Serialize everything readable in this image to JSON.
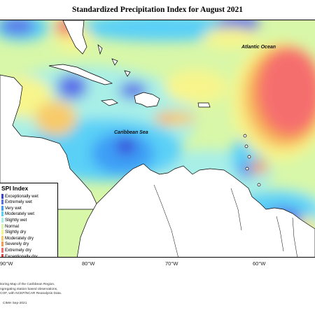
{
  "title": "Standardized Precipitation Index for August 2021",
  "labels": {
    "atlantic": "Atlantic Ocean",
    "caribbean": "Caribbean Sea"
  },
  "legend": {
    "title": "SPI Index",
    "items": [
      {
        "label": "Exceptionally wet",
        "color": "#3a40d8"
      },
      {
        "label": "Extremely wet",
        "color": "#5b6ee8"
      },
      {
        "label": "Very wet",
        "color": "#3d9ef5"
      },
      {
        "label": "Moderately wet",
        "color": "#5ad0f7"
      },
      {
        "label": "Slightly wet",
        "color": "#a8efe7"
      },
      {
        "label": "Normal",
        "color": "#d8f7a8"
      },
      {
        "label": "Slightly dry",
        "color": "#f7f58c"
      },
      {
        "label": "Moderately dry",
        "color": "#f8cb6a"
      },
      {
        "label": "Severely dry",
        "color": "#f79a54"
      },
      {
        "label": "Extremely dry",
        "color": "#f56e6e"
      },
      {
        "label": "Exceptionally dry",
        "color": "#e03c3c"
      }
    ]
  },
  "longitudes": [
    "90°W",
    "80°W",
    "70°W",
    "60°W"
  ],
  "footer_lines": [
    "itoring Map of the Caribbean Region.",
    "ngregating station based observations,",
    "COF, with NCEP/NCAR Reanalysis Data."
  ],
  "credit": "CIMH Sep-2021"
}
